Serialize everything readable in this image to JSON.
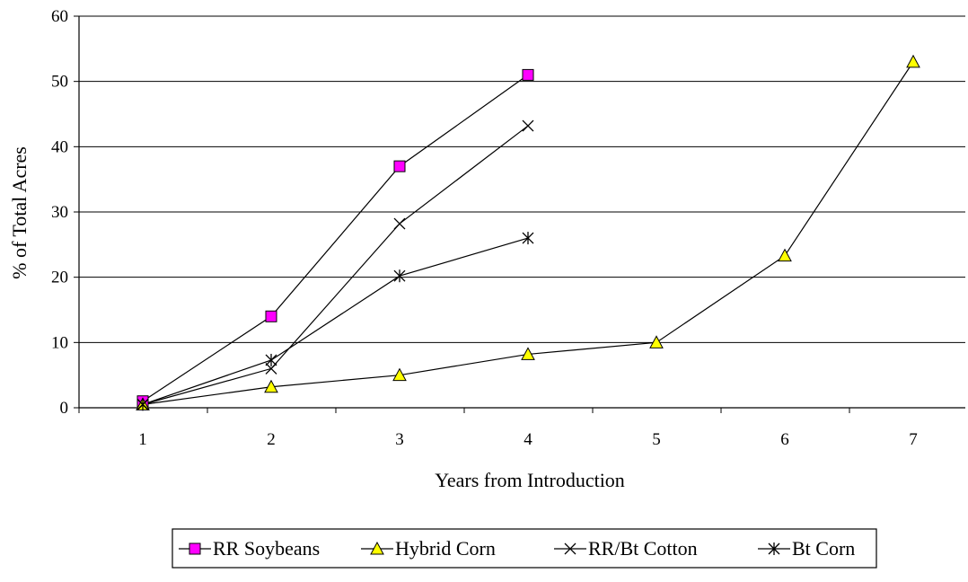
{
  "chart_data": {
    "type": "line",
    "title": "",
    "xlabel": "Years from Introduction",
    "ylabel": "% of Total Acres",
    "x": [
      1,
      2,
      3,
      4,
      5,
      6,
      7
    ],
    "xticks": [
      "1",
      "2",
      "3",
      "4",
      "5",
      "6",
      "7"
    ],
    "yticks": [
      "0",
      "10",
      "20",
      "30",
      "40",
      "50",
      "60"
    ],
    "ylim": [
      0,
      60
    ],
    "grid": "horizontal",
    "legend_position": "bottom",
    "series": [
      {
        "name": "RR Soybeans",
        "marker": "square",
        "color": "#ff00ff",
        "line_color": "#000000",
        "x": [
          1,
          2,
          3,
          4
        ],
        "values": [
          1,
          14,
          37,
          51
        ]
      },
      {
        "name": "Hybrid Corn",
        "marker": "triangle",
        "color": "#ffff00",
        "line_color": "#000000",
        "x": [
          1,
          2,
          3,
          4,
          5,
          6,
          7
        ],
        "values": [
          0.5,
          3.2,
          5,
          8.2,
          10,
          23.3,
          53
        ]
      },
      {
        "name": "RR/Bt Cotton",
        "marker": "x",
        "color": "#000000",
        "line_color": "#000000",
        "x": [
          1,
          2,
          3,
          4
        ],
        "values": [
          0.5,
          6,
          28.2,
          43.2
        ]
      },
      {
        "name": "Bt Corn",
        "marker": "star",
        "color": "#000000",
        "line_color": "#000000",
        "x": [
          1,
          2,
          3,
          4
        ],
        "values": [
          0.5,
          7.3,
          20.2,
          26
        ]
      }
    ]
  }
}
